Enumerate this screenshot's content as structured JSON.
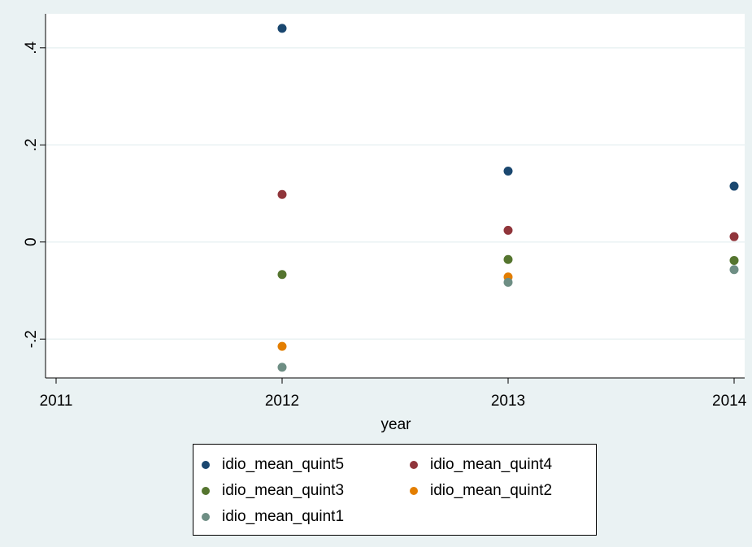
{
  "chart_data": {
    "type": "scatter",
    "xlabel": "year",
    "ylabel": "",
    "xlim": [
      2011,
      2014
    ],
    "ylim": [
      -0.28,
      0.47
    ],
    "xticks": [
      "2011",
      "2012",
      "2013",
      "2014"
    ],
    "yticks": [
      {
        "value": -0.2,
        "label": "-.2"
      },
      {
        "value": 0,
        "label": "0"
      },
      {
        "value": 0.2,
        "label": ".2"
      },
      {
        "value": 0.4,
        "label": ".4"
      }
    ],
    "grid": "horizontal",
    "legend_position": "bottom",
    "series": [
      {
        "name": "idio_mean_quint5",
        "color": "#1a476f",
        "x": [
          2012,
          2013,
          2014
        ],
        "y": [
          0.44,
          0.146,
          0.115
        ]
      },
      {
        "name": "idio_mean_quint4",
        "color": "#90353b",
        "x": [
          2012,
          2013,
          2014
        ],
        "y": [
          0.098,
          0.024,
          0.011
        ]
      },
      {
        "name": "idio_mean_quint3",
        "color": "#55752f",
        "x": [
          2012,
          2013,
          2014
        ],
        "y": [
          -0.067,
          -0.036,
          -0.038
        ]
      },
      {
        "name": "idio_mean_quint2",
        "color": "#e37e00",
        "x": [
          2012,
          2013,
          2014
        ],
        "y": [
          -0.215,
          -0.072,
          null
        ]
      },
      {
        "name": "idio_mean_quint1",
        "color": "#6e8e84",
        "x": [
          2012,
          2013,
          2014
        ],
        "y": [
          -0.258,
          -0.083,
          -0.057
        ]
      }
    ]
  }
}
